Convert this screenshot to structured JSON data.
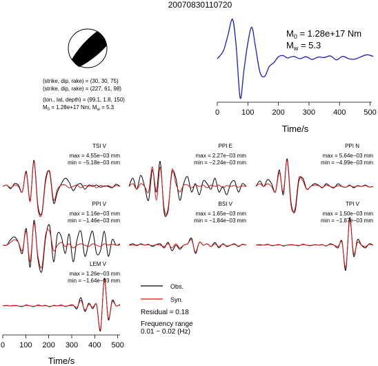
{
  "title": "20070830110720",
  "mechanism": {
    "plane1": "(strike, dip, rake) = (30, 30, 75)",
    "plane2": "(strike, dip, rake) = (227, 61, 98)",
    "location": "(lon., lat, depth) = (99.1, 1.8, 150)",
    "m0_prefix": "M",
    "m0_sub": "0",
    "m0_value": " = 1.28e+17 Nm, M",
    "mw_sub": "w",
    "mw_value": " = 5.3"
  },
  "stf_labels": {
    "m0_sym": "M",
    "m0_sub": "0",
    "m0_text": " = 1.28e+17 Nm",
    "mw_sym": "M",
    "mw_sub": "w",
    "mw_text": " = 5.3"
  },
  "legend": {
    "obs": "Obs.",
    "syn": "Syn.",
    "residual": "Residual = 0.18",
    "freq_title": "Frequency range",
    "freq_value": "0.01 − 0.02 (Hz)"
  },
  "colors": {
    "observed": "#000000",
    "synthetic": "#dd1111",
    "stf": "#1a1acc"
  },
  "chart_data": [
    {
      "type": "line",
      "name": "source-time-function",
      "xlabel": "Time/s",
      "xlim": [
        0,
        510
      ],
      "xticks": [
        0,
        100,
        200,
        300,
        400,
        500
      ],
      "series": [
        {
          "x": [
            0,
            20,
            35,
            50,
            62,
            75,
            87,
            100,
            113,
            125,
            140,
            155,
            170,
            185,
            200,
            215,
            230,
            250,
            270,
            290,
            310,
            330,
            350,
            370,
            390,
            410,
            430,
            450,
            470,
            490,
            510
          ],
          "y": [
            0,
            0.2,
            0.6,
            1.0,
            0.3,
            -1.0,
            -0.3,
            0.4,
            0.8,
            0.3,
            -0.35,
            -0.45,
            -0.2,
            -0.1,
            0.05,
            0.08,
            0.02,
            0.06,
            0.0,
            0.05,
            -0.02,
            0.04,
            0.03,
            0.07,
            -0.03,
            0.06,
            0.0,
            -0.01,
            0.05,
            0.1,
            0.06
          ]
        }
      ]
    },
    {
      "type": "line",
      "name": "waveforms",
      "xlabel": "Time/s",
      "xlim": [
        0,
        510
      ],
      "xticks": [
        0,
        100,
        200,
        300,
        400,
        500
      ],
      "stations": [
        {
          "label": "TSI V",
          "max": "max = 4.55e−03 mm",
          "min": "min = −5.18e−03 mm",
          "obs": [
            0,
            0.05,
            -0.08,
            0.1,
            0.05,
            -0.2,
            0.55,
            -0.5,
            0.95,
            -0.7,
            -0.95,
            0.3,
            0.5,
            -0.6,
            -0.2,
            0.1,
            0.3,
            0.15,
            -0.15,
            0.05,
            0.1,
            -0.1,
            0.05,
            0.0,
            0.05,
            -0.03,
            0.02,
            0.0,
            -0.05,
            0.08,
            0.0
          ],
          "syn": [
            0,
            0.05,
            -0.05,
            0.05,
            0.0,
            -0.2,
            0.5,
            -0.55,
            0.9,
            -0.8,
            -1.0,
            0.2,
            0.55,
            -0.5,
            -0.1,
            0.05,
            0.05,
            -0.05,
            0.0,
            0.05,
            -0.05,
            0.04,
            0.0,
            0.05,
            -0.05,
            0.04,
            0.0,
            0.03,
            -0.03,
            0.03,
            0.0
          ]
        },
        {
          "label": "PPI E",
          "max": "max = 2.27e−03 mm",
          "min": "min = −2.24e−03 mm",
          "obs": [
            0,
            0.3,
            -0.1,
            0.4,
            0.0,
            -0.5,
            0.6,
            -0.2,
            0.9,
            -0.95,
            -0.8,
            0.5,
            0.3,
            -0.5,
            0.1,
            0.35,
            -0.2,
            0.1,
            -0.3,
            0.2,
            0.1,
            -0.1,
            0.3,
            -0.2,
            0.0,
            -0.3,
            0.1,
            0.2,
            -0.2,
            0.1,
            0.0
          ],
          "syn": [
            0,
            0.1,
            -0.1,
            0.1,
            0.0,
            -0.2,
            0.7,
            -0.5,
            0.7,
            -0.8,
            -0.9,
            0.6,
            0.1,
            -0.2,
            0.05,
            0.05,
            -0.05,
            0.05,
            0.0,
            0.05,
            -0.05,
            0.05,
            0.0,
            0.05,
            -0.05,
            0.03,
            0.0,
            0.03,
            -0.03,
            0.02,
            0.0
          ]
        },
        {
          "label": "PPI N",
          "max": "max = 5.64e−03 mm",
          "min": "min = −4.99e−03 mm",
          "obs": [
            0,
            0.2,
            0.0,
            0.25,
            0.1,
            -0.2,
            0.6,
            -0.3,
            1.0,
            -0.6,
            -0.9,
            0.2,
            0.3,
            -0.1,
            0.0,
            0.1,
            0.05,
            -0.05,
            0.1,
            0.0,
            -0.05,
            0.1,
            0.0,
            -0.03,
            0.05,
            -0.05,
            0.03,
            0.0,
            0.05,
            -0.02,
            0.0
          ],
          "syn": [
            0,
            0.1,
            0.0,
            0.1,
            0.0,
            -0.2,
            0.5,
            -0.2,
            0.95,
            -0.7,
            -0.8,
            0.3,
            0.2,
            -0.1,
            0.0,
            0.05,
            0.03,
            -0.03,
            0.05,
            0.0,
            -0.03,
            0.03,
            0.0,
            -0.03,
            0.03,
            -0.02,
            0.02,
            0.0,
            0.03,
            -0.02,
            0.0
          ]
        },
        {
          "label": "PPI V",
          "max": "max = 1.16e−03 mm",
          "min": "min = −1.46e−03 mm",
          "obs": [
            0,
            0.0,
            0.2,
            0.3,
            0.1,
            -0.3,
            0.6,
            -0.8,
            0.9,
            -0.5,
            -0.95,
            0.3,
            0.7,
            -0.6,
            0.4,
            0.3,
            -0.3,
            0.4,
            -0.6,
            0.2,
            0.5,
            -0.4,
            0.1,
            0.5,
            -0.3,
            -0.2,
            0.5,
            -0.4,
            0.2,
            0.0,
            0.05
          ],
          "syn": [
            0,
            0.0,
            0.1,
            0.2,
            0.1,
            -0.2,
            0.5,
            -0.6,
            0.8,
            -0.4,
            -0.8,
            0.4,
            0.5,
            -0.2,
            0.0,
            0.1,
            -0.05,
            0.05,
            -0.1,
            0.0,
            0.05,
            0.0,
            -0.05,
            0.05,
            0.0,
            -0.05,
            0.05,
            0.0,
            0.03,
            0.0,
            0.0
          ]
        },
        {
          "label": "BSI V",
          "max": "max = 1.65e−03 mm",
          "min": "min = −1.84e−03 mm",
          "obs": [
            0,
            0.05,
            -0.02,
            0.05,
            0.0,
            0.03,
            -0.05,
            0.02,
            0.05,
            -0.1,
            0.1,
            -0.2,
            0.0,
            -0.15,
            0.0,
            0.05,
            0.25,
            -0.3,
            0.1,
            0.0,
            0.05,
            -0.05,
            0.1,
            -0.1,
            0.05,
            -0.05,
            0.0,
            0.05,
            -0.05,
            0.03,
            0.0
          ],
          "syn": [
            0,
            0.0,
            0.0,
            0.03,
            0.0,
            0.02,
            -0.02,
            0.02,
            0.0,
            -0.05,
            0.05,
            -0.1,
            0.05,
            -0.1,
            0.0,
            0.05,
            0.2,
            -0.25,
            0.1,
            0.0,
            0.05,
            -0.05,
            0.05,
            -0.05,
            0.03,
            -0.03,
            0.0,
            0.03,
            -0.03,
            0.02,
            0.0
          ]
        },
        {
          "label": "TPI V",
          "max": "max = 1.50e−03 mm",
          "min": "min = −1.87e−03 mm",
          "obs": [
            0,
            0.02,
            0.0,
            0.03,
            -0.02,
            0.0,
            0.02,
            -0.03,
            0.0,
            0.02,
            0.0,
            -0.02,
            0.03,
            0.0,
            -0.02,
            0.02,
            0.0,
            0.02,
            -0.03,
            0.05,
            0.0,
            -0.1,
            0.15,
            -0.9,
            1.0,
            -0.4,
            0.2,
            0.0,
            -0.1,
            0.05,
            0.0
          ],
          "syn": [
            0,
            0.0,
            0.0,
            0.02,
            -0.01,
            0.0,
            0.01,
            -0.02,
            0.0,
            0.01,
            0.0,
            -0.01,
            0.02,
            0.0,
            -0.01,
            0.01,
            0.0,
            0.01,
            -0.02,
            0.03,
            0.0,
            -0.05,
            0.1,
            -0.8,
            0.9,
            -0.3,
            0.1,
            0.0,
            -0.05,
            0.03,
            0.0
          ]
        },
        {
          "label": "LEM V",
          "max": "max = 1.26e−03 mm",
          "min": "min = −1.64e−03 mm",
          "obs": [
            0,
            0.02,
            0.0,
            0.02,
            0.0,
            -0.02,
            0.03,
            0.0,
            -0.02,
            0.03,
            0.0,
            0.02,
            -0.03,
            0.02,
            0.0,
            0.03,
            -0.02,
            0.02,
            0.03,
            -0.1,
            0.3,
            -0.2,
            0.1,
            -0.1,
            0.05,
            -0.9,
            1.0,
            -0.5,
            0.2,
            0.0,
            0.05
          ],
          "syn": [
            0,
            0.01,
            0.0,
            0.01,
            0.0,
            -0.01,
            0.02,
            0.0,
            -0.01,
            0.02,
            0.0,
            0.01,
            -0.02,
            0.01,
            0.0,
            0.02,
            -0.01,
            0.01,
            0.02,
            -0.05,
            0.2,
            -0.15,
            0.05,
            -0.05,
            0.03,
            -0.85,
            0.95,
            -0.45,
            0.15,
            0.0,
            0.03
          ]
        }
      ]
    }
  ]
}
